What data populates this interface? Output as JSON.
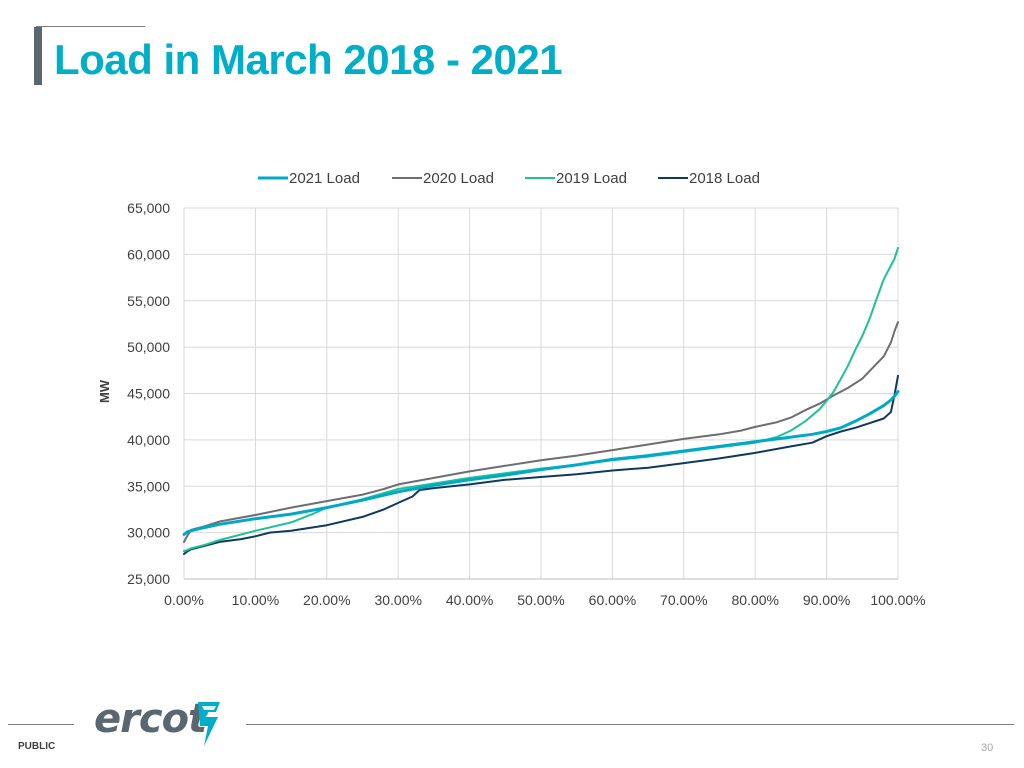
{
  "slide": {
    "title": "Load in March 2018 - 2021",
    "footer_label": "PUBLIC",
    "page_number": "30",
    "logo_text": "ercot"
  },
  "colors": {
    "title": "#00aec7",
    "accent_bar": "#5b6770",
    "grid": "#d9d9d9",
    "axis_text": "#404040"
  },
  "chart_data": {
    "type": "line",
    "title": "",
    "xlabel": "",
    "ylabel": "MW",
    "xlim": [
      0,
      100
    ],
    "ylim": [
      25000,
      65000
    ],
    "x_ticks": [
      0,
      10,
      20,
      30,
      40,
      50,
      60,
      70,
      80,
      90,
      100
    ],
    "x_tick_labels": [
      "0.00%",
      "10.00%",
      "20.00%",
      "30.00%",
      "40.00%",
      "50.00%",
      "60.00%",
      "70.00%",
      "80.00%",
      "90.00%",
      "100.00%"
    ],
    "y_ticks": [
      25000,
      30000,
      35000,
      40000,
      45000,
      50000,
      55000,
      60000,
      65000
    ],
    "y_tick_labels": [
      "25,000",
      "30,000",
      "35,000",
      "40,000",
      "45,000",
      "50,000",
      "55,000",
      "60,000",
      "65,000"
    ],
    "grid": true,
    "legend_position": "top",
    "series": [
      {
        "name": "2021 Load",
        "color": "#00a9c7",
        "width": 3,
        "points": [
          [
            0,
            29800
          ],
          [
            0.5,
            30100
          ],
          [
            2,
            30400
          ],
          [
            5,
            30900
          ],
          [
            10,
            31500
          ],
          [
            15,
            32000
          ],
          [
            20,
            32700
          ],
          [
            25,
            33500
          ],
          [
            30,
            34400
          ],
          [
            35,
            35100
          ],
          [
            40,
            35700
          ],
          [
            45,
            36200
          ],
          [
            50,
            36800
          ],
          [
            55,
            37300
          ],
          [
            60,
            37900
          ],
          [
            65,
            38300
          ],
          [
            70,
            38800
          ],
          [
            75,
            39300
          ],
          [
            80,
            39800
          ],
          [
            85,
            40300
          ],
          [
            88,
            40600
          ],
          [
            90,
            40900
          ],
          [
            92,
            41300
          ],
          [
            94,
            42000
          ],
          [
            96,
            42800
          ],
          [
            98,
            43700
          ],
          [
            99,
            44300
          ],
          [
            99.5,
            44700
          ],
          [
            100,
            45200
          ]
        ]
      },
      {
        "name": "2020 Load",
        "color": "#6d6e71",
        "width": 2,
        "points": [
          [
            0,
            29000
          ],
          [
            0.5,
            29700
          ],
          [
            1,
            30300
          ],
          [
            3,
            30700
          ],
          [
            5,
            31200
          ],
          [
            10,
            31900
          ],
          [
            15,
            32700
          ],
          [
            20,
            33400
          ],
          [
            25,
            34100
          ],
          [
            28,
            34700
          ],
          [
            30,
            35200
          ],
          [
            35,
            35900
          ],
          [
            40,
            36600
          ],
          [
            45,
            37200
          ],
          [
            50,
            37800
          ],
          [
            55,
            38300
          ],
          [
            60,
            38900
          ],
          [
            65,
            39500
          ],
          [
            70,
            40100
          ],
          [
            75,
            40600
          ],
          [
            78,
            41000
          ],
          [
            80,
            41400
          ],
          [
            83,
            41900
          ],
          [
            85,
            42400
          ],
          [
            87,
            43200
          ],
          [
            89,
            43900
          ],
          [
            91,
            44800
          ],
          [
            93,
            45600
          ],
          [
            95,
            46600
          ],
          [
            96,
            47400
          ],
          [
            97,
            48200
          ],
          [
            98,
            49000
          ],
          [
            99,
            50500
          ],
          [
            99.5,
            51700
          ],
          [
            100,
            52700
          ]
        ]
      },
      {
        "name": "2019 Load",
        "color": "#1fc196",
        "width": 2,
        "points": [
          [
            0,
            28000
          ],
          [
            1,
            28300
          ],
          [
            3,
            28700
          ],
          [
            5,
            29200
          ],
          [
            8,
            29800
          ],
          [
            10,
            30200
          ],
          [
            15,
            31100
          ],
          [
            18,
            32000
          ],
          [
            20,
            32700
          ],
          [
            25,
            33600
          ],
          [
            30,
            34700
          ],
          [
            35,
            35300
          ],
          [
            40,
            35900
          ],
          [
            45,
            36400
          ],
          [
            50,
            36900
          ],
          [
            55,
            37300
          ],
          [
            60,
            37800
          ],
          [
            65,
            38200
          ],
          [
            70,
            38700
          ],
          [
            75,
            39200
          ],
          [
            80,
            39700
          ],
          [
            83,
            40300
          ],
          [
            85,
            41000
          ],
          [
            87,
            42000
          ],
          [
            89,
            43300
          ],
          [
            90,
            44200
          ],
          [
            91,
            45200
          ],
          [
            92,
            46600
          ],
          [
            93,
            48000
          ],
          [
            94,
            49700
          ],
          [
            95,
            51200
          ],
          [
            96,
            53000
          ],
          [
            97,
            55200
          ],
          [
            98,
            57300
          ],
          [
            99,
            58800
          ],
          [
            99.5,
            59500
          ],
          [
            100,
            60700
          ]
        ]
      },
      {
        "name": "2018 Load",
        "color": "#0f3a5f",
        "width": 2,
        "points": [
          [
            0,
            27700
          ],
          [
            0.5,
            28000
          ],
          [
            1,
            28200
          ],
          [
            3,
            28600
          ],
          [
            5,
            29000
          ],
          [
            8,
            29300
          ],
          [
            10,
            29600
          ],
          [
            12,
            30000
          ],
          [
            15,
            30200
          ],
          [
            20,
            30800
          ],
          [
            25,
            31700
          ],
          [
            28,
            32500
          ],
          [
            30,
            33200
          ],
          [
            32,
            33900
          ],
          [
            33,
            34600
          ],
          [
            35,
            34800
          ],
          [
            40,
            35200
          ],
          [
            45,
            35700
          ],
          [
            50,
            36000
          ],
          [
            55,
            36300
          ],
          [
            60,
            36700
          ],
          [
            65,
            37000
          ],
          [
            70,
            37500
          ],
          [
            75,
            38000
          ],
          [
            80,
            38600
          ],
          [
            85,
            39300
          ],
          [
            88,
            39700
          ],
          [
            90,
            40400
          ],
          [
            92,
            40900
          ],
          [
            94,
            41300
          ],
          [
            96,
            41800
          ],
          [
            98,
            42300
          ],
          [
            99,
            43000
          ],
          [
            99.5,
            44800
          ],
          [
            100,
            46900
          ]
        ]
      }
    ]
  }
}
